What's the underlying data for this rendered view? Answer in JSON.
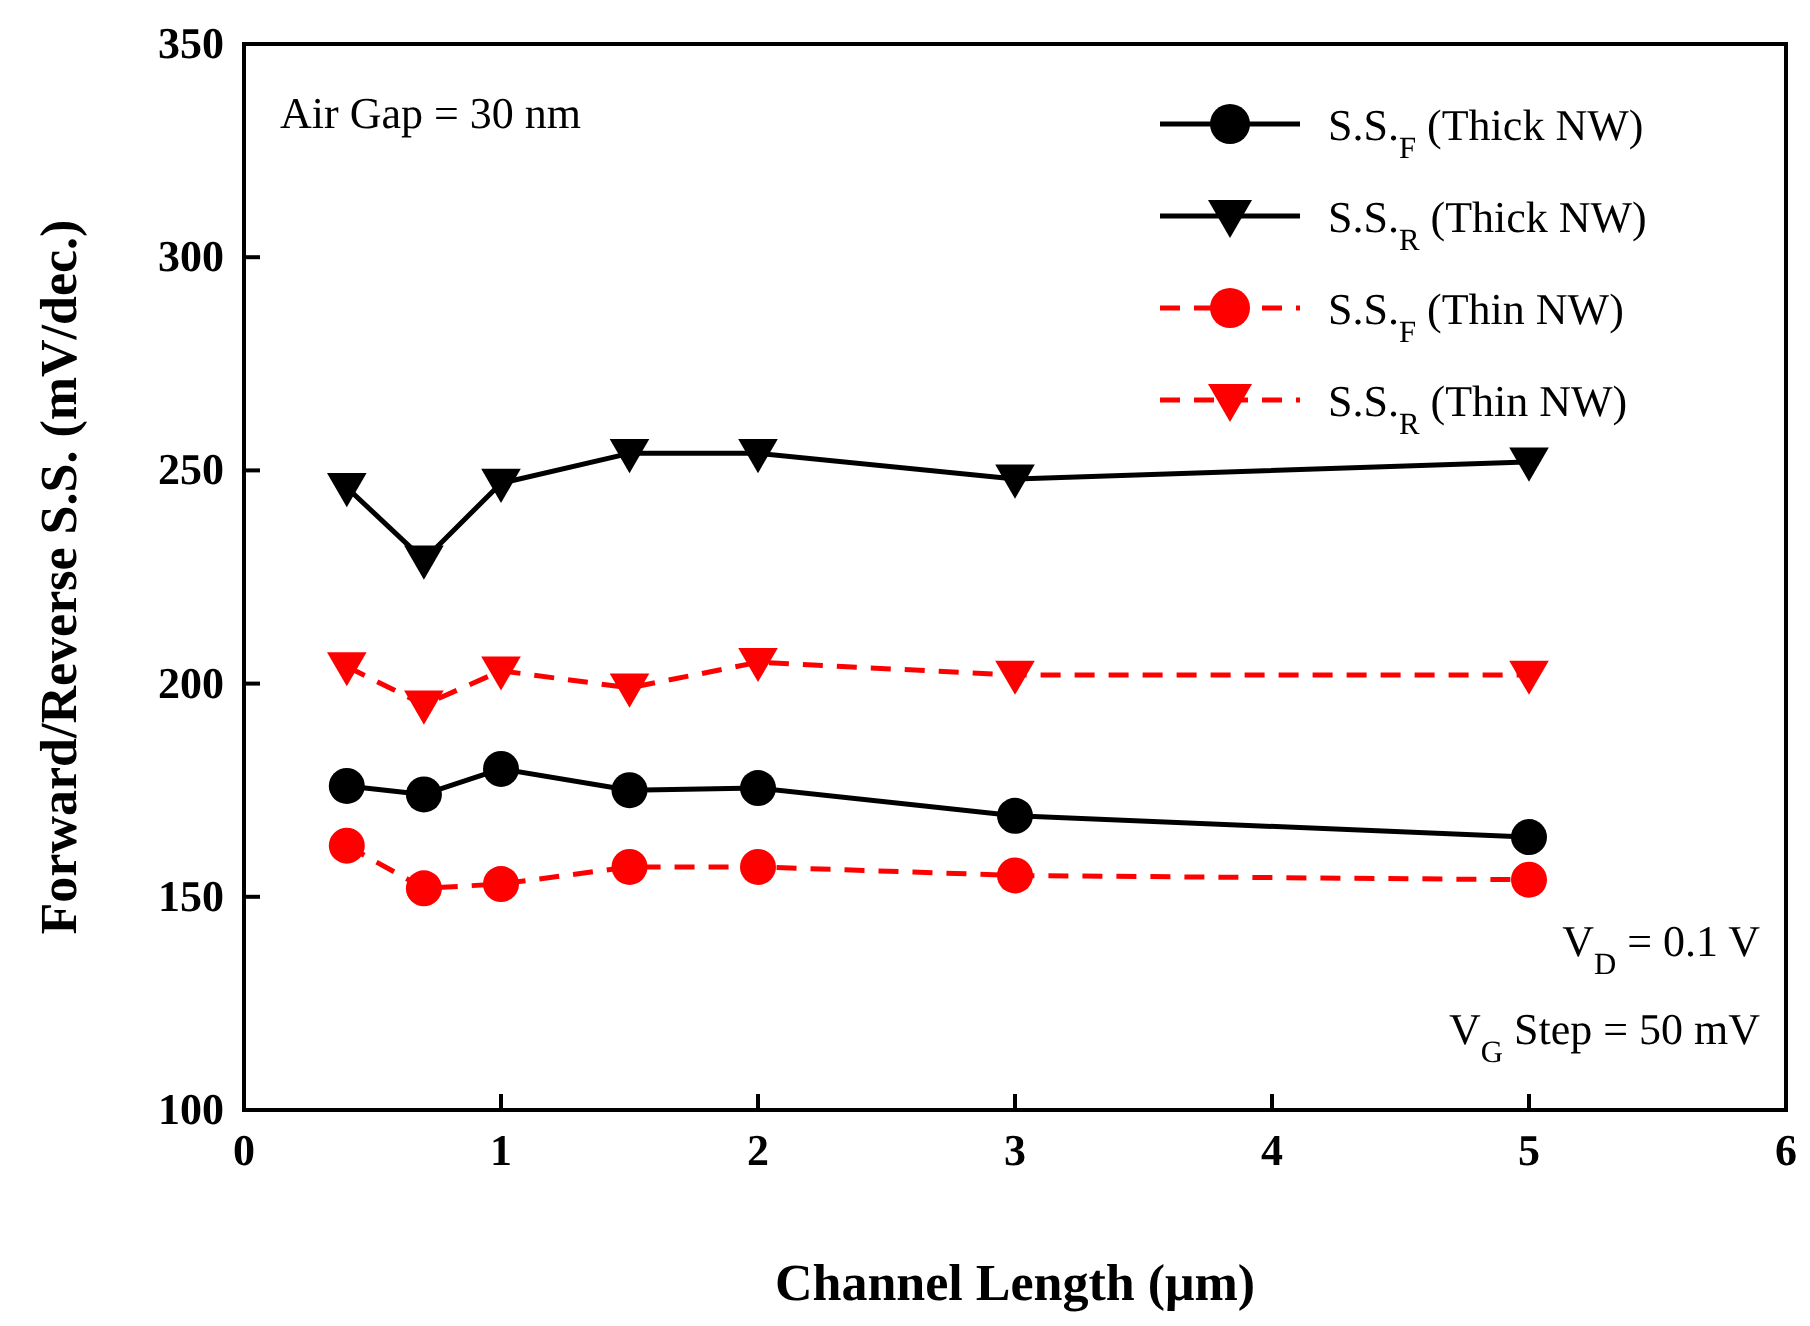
{
  "chart_data": {
    "type": "line",
    "xlabel": "Channel Length (μm)",
    "ylabel": "Forward/Reverse S.S. (mV/dec.)",
    "xlim": [
      0,
      6
    ],
    "xticks": [
      0,
      1,
      2,
      3,
      4,
      5,
      6
    ],
    "ylim": [
      100,
      350
    ],
    "yticks": [
      100,
      150,
      200,
      250,
      300,
      350
    ],
    "grid": false,
    "legend": "top right",
    "x": [
      0.4,
      0.7,
      1,
      1.5,
      2,
      3,
      5
    ],
    "series": [
      {
        "name": "S.S.$_{F}$ (Thick NW)",
        "color": "#000000",
        "marker": "circle",
        "line_style": "solid",
        "values": [
          176,
          174,
          180,
          175,
          175.5,
          169,
          164
        ]
      },
      {
        "name": "S.S.$_{R}$ (Thick NW)",
        "color": "#000000",
        "marker": "triangle",
        "line_style": "solid",
        "values": [
          246,
          229,
          247,
          254,
          254,
          248,
          252
        ]
      },
      {
        "name": "S.S.$_{F}$ (Thin NW)",
        "color": "#ff0000",
        "marker": "circle",
        "line_style": "dashed",
        "values": [
          162,
          152,
          153,
          157,
          157,
          155,
          154
        ]
      },
      {
        "name": "S.S.$_{R}$ (Thin NW)",
        "color": "#ff0000",
        "marker": "triangle",
        "line_style": "dashed",
        "values": [
          204,
          195,
          203,
          199,
          205,
          202,
          202
        ]
      }
    ],
    "annotations": [
      "Air Gap = 30 nm",
      "V$_{D}$ = 0.1 V",
      "V$_{G}$ Step = 50 mV"
    ]
  }
}
